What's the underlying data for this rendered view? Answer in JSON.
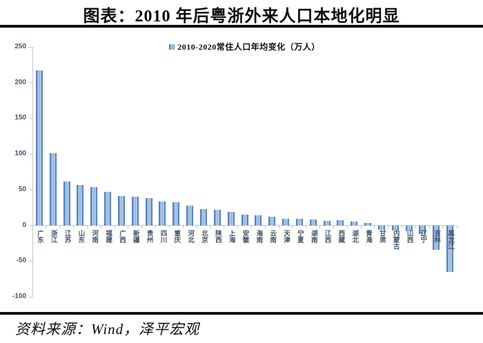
{
  "title": "图表：2010 年后粤浙外来人口本地化明显",
  "source": "资料来源：Wind，泽平宏观",
  "chart_data": {
    "type": "bar",
    "title": "2010-2020常住人口年均变化（万人）",
    "legend": [
      "2010-2020常住人口年均变化（万人）"
    ],
    "legend_position": "top",
    "grid": false,
    "xlabel": "",
    "ylabel": "",
    "ylim": [
      -100,
      250
    ],
    "y_ticks": [
      250,
      200,
      150,
      100,
      50,
      0,
      -50,
      -100
    ],
    "categories": [
      "广东",
      "浙江",
      "江苏",
      "山东",
      "河南",
      "福建",
      "广西",
      "新疆",
      "贵州",
      "四川",
      "重庆",
      "河北",
      "北京",
      "陕西",
      "上海",
      "安徽",
      "海南",
      "云南",
      "天津",
      "宁夏",
      "湖南",
      "江西",
      "西藏",
      "湖北",
      "青海",
      "甘肃",
      "内蒙古",
      "山西",
      "辽宁",
      "吉林",
      "黑龙江"
    ],
    "values": [
      217,
      101,
      61,
      57,
      54,
      47,
      41,
      40,
      38,
      33,
      32,
      28,
      23,
      22,
      19,
      15,
      14,
      12,
      9,
      9,
      8,
      6,
      7,
      5,
      3,
      -6,
      -7,
      -8,
      -12,
      -34,
      -65
    ],
    "colors": {
      "bar": "#4F81BD",
      "bar_highlight": "#C9D9EE",
      "axis": "#C6C6C6",
      "tick_label": "#44546A",
      "rule": "#101010"
    }
  }
}
